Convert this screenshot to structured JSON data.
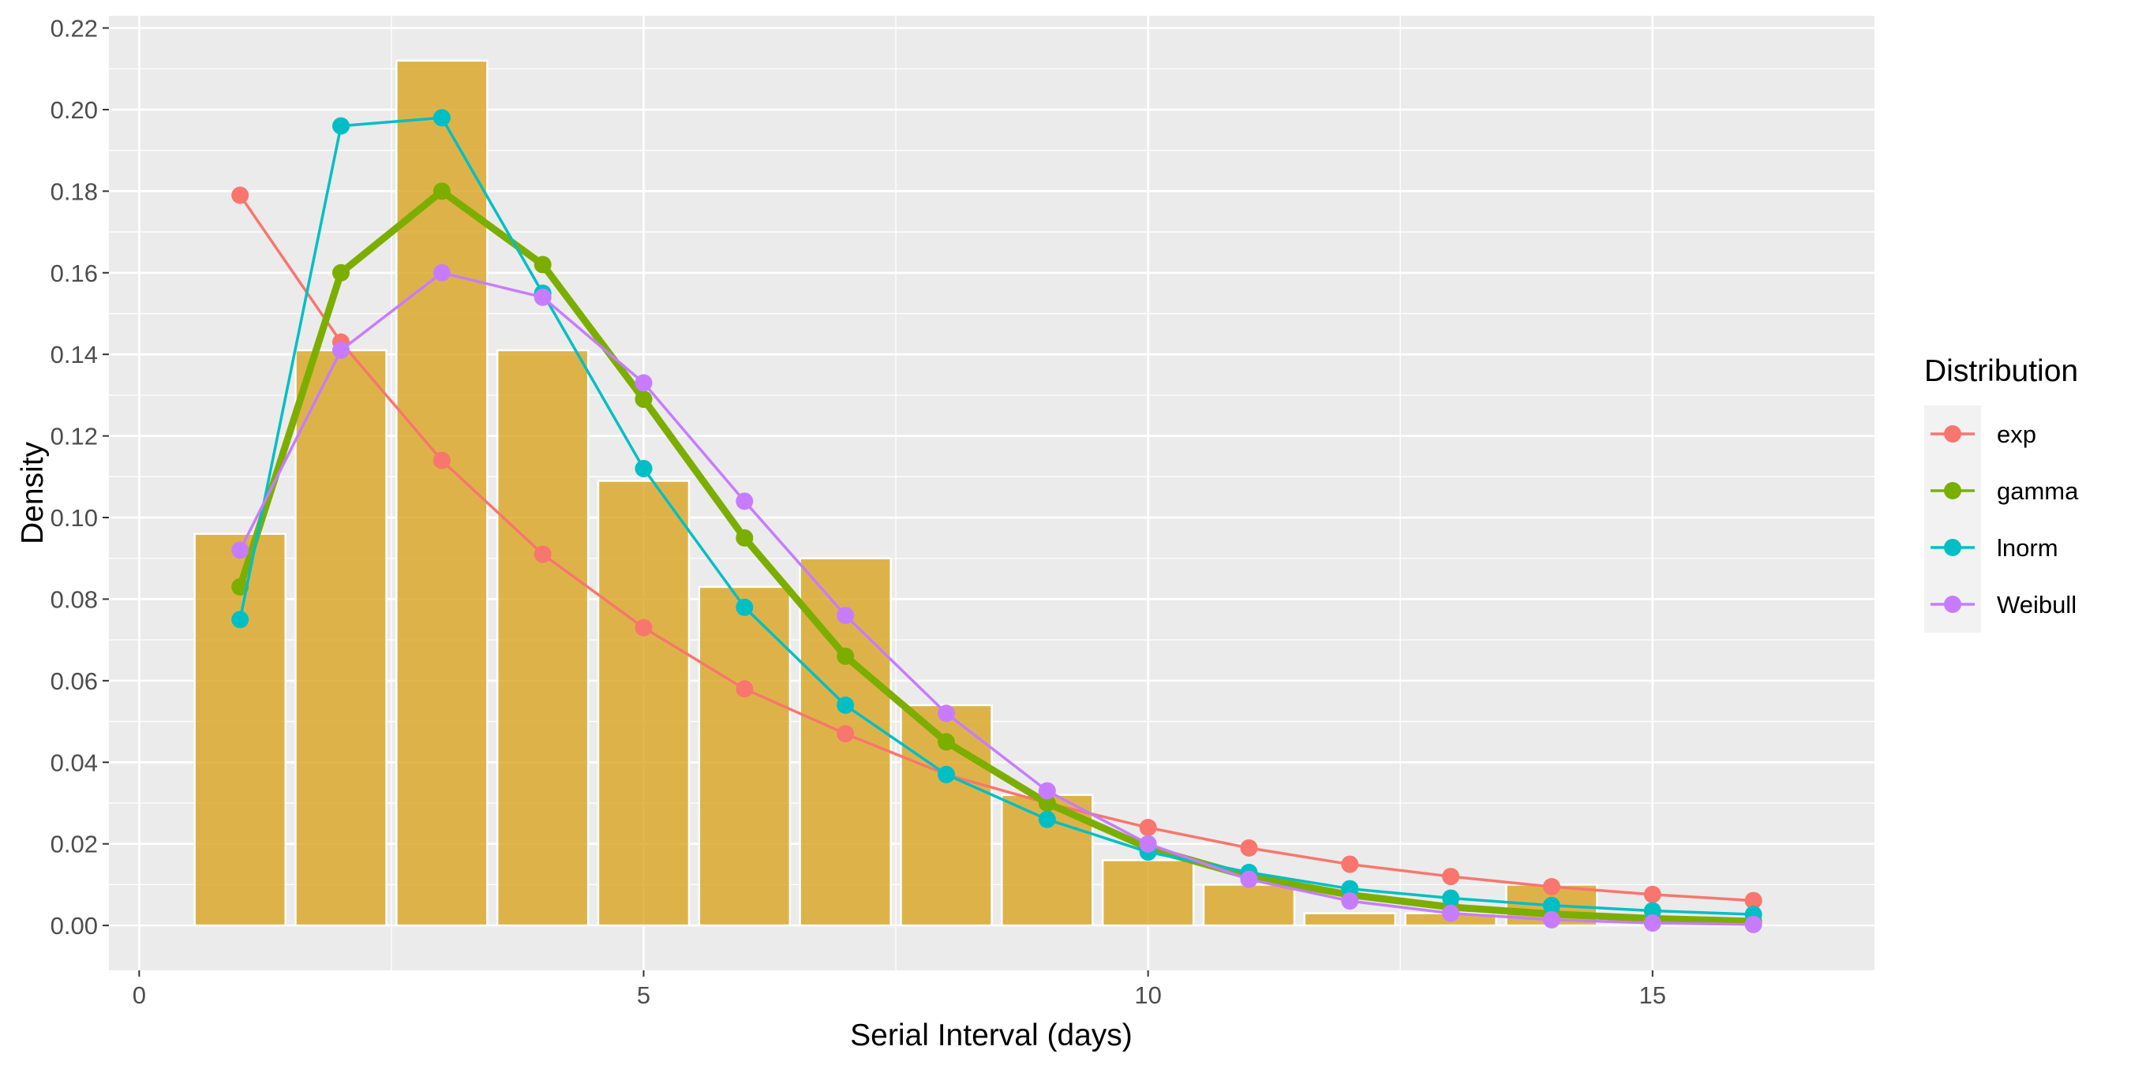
{
  "chart_data": {
    "type": "bar+line",
    "xlabel": "Serial Interval (days)",
    "ylabel": "Density",
    "xlim": [
      -0.3,
      17.2
    ],
    "ylim": [
      -0.011,
      0.223
    ],
    "x_ticks": [
      0,
      5,
      10,
      15
    ],
    "x_tick_labels": [
      "0",
      "5",
      "10",
      "15"
    ],
    "y_ticks": [
      0,
      0.02,
      0.04,
      0.06,
      0.08,
      0.1,
      0.12,
      0.14,
      0.16,
      0.18,
      0.2,
      0.22
    ],
    "y_tick_labels": [
      "0.00",
      "0.02",
      "0.04",
      "0.06",
      "0.08",
      "0.10",
      "0.12",
      "0.14",
      "0.16",
      "0.18",
      "0.20",
      "0.22"
    ],
    "grid": true,
    "histogram": {
      "color": "#DAA520",
      "bin_width": 0.9,
      "x": [
        1,
        2,
        3,
        4,
        5,
        6,
        7,
        8,
        9,
        10,
        11,
        12,
        13,
        14
      ],
      "values": [
        0.096,
        0.141,
        0.212,
        0.141,
        0.109,
        0.083,
        0.09,
        0.054,
        0.032,
        0.016,
        0.01,
        0.003,
        0.003,
        0.01
      ]
    },
    "x": [
      1,
      2,
      3,
      4,
      5,
      6,
      7,
      8,
      9,
      10,
      11,
      12,
      13,
      14,
      15,
      16
    ],
    "series": [
      {
        "name": "exp",
        "color": "#F8766D",
        "values": [
          0.179,
          0.143,
          0.114,
          0.091,
          0.073,
          0.058,
          0.047,
          0.037,
          0.03,
          0.024,
          0.019,
          0.015,
          0.012,
          0.0095,
          0.0076,
          0.0061
        ]
      },
      {
        "name": "gamma",
        "color": "#7CAE00",
        "emphasis": true,
        "values": [
          0.083,
          0.16,
          0.18,
          0.162,
          0.129,
          0.095,
          0.066,
          0.045,
          0.03,
          0.019,
          0.012,
          0.0075,
          0.0045,
          0.0028,
          0.0017,
          0.001
        ]
      },
      {
        "name": "lnorm",
        "color": "#00BFC4",
        "values": [
          0.075,
          0.196,
          0.198,
          0.155,
          0.112,
          0.078,
          0.054,
          0.037,
          0.026,
          0.018,
          0.013,
          0.009,
          0.0067,
          0.0049,
          0.0036,
          0.0027
        ]
      },
      {
        "name": "Weibull",
        "color": "#C77CFF",
        "values": [
          0.092,
          0.141,
          0.16,
          0.154,
          0.133,
          0.104,
          0.076,
          0.052,
          0.033,
          0.02,
          0.0113,
          0.006,
          0.003,
          0.0014,
          0.0006,
          0.00025
        ]
      }
    ],
    "legend": {
      "title": "Distribution",
      "position": "right"
    }
  }
}
